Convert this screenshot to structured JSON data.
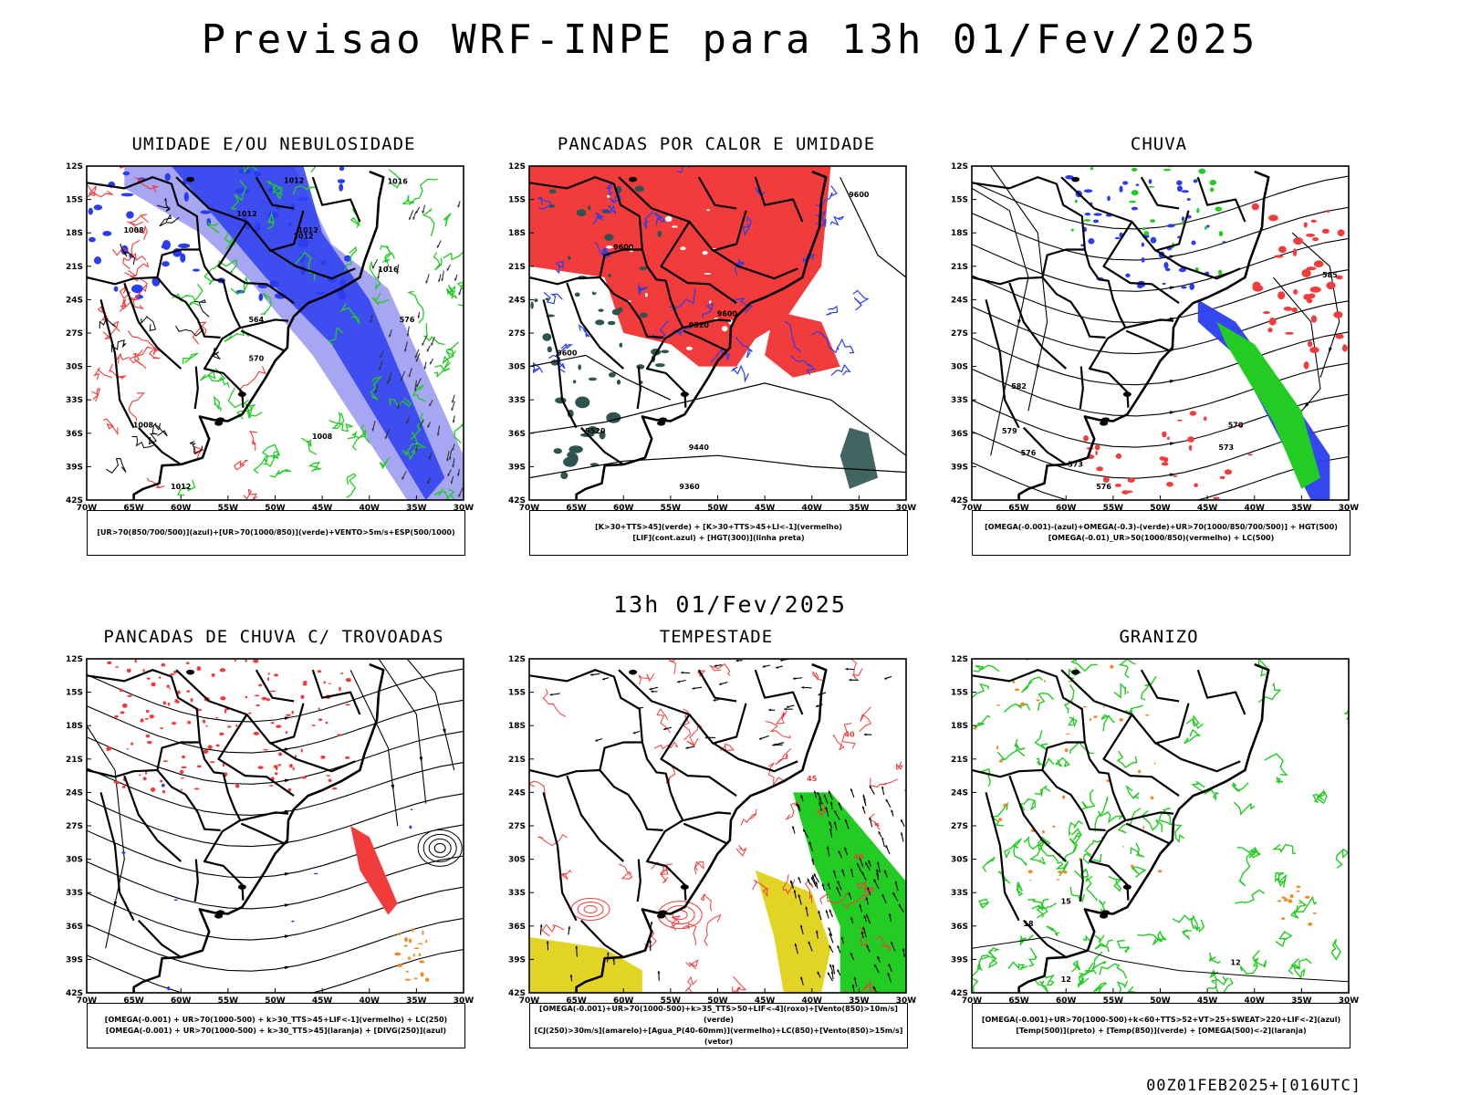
{
  "page": {
    "title": "Previsao WRF-INPE  para 13h 01/Fev/2025",
    "subtitle": "13h 01/Fev/2025",
    "stamp": "00Z01FEB2025+[016UTC]"
  },
  "axes": {
    "lat_labels": [
      "12S",
      "15S",
      "18S",
      "21S",
      "24S",
      "27S",
      "30S",
      "33S",
      "36S",
      "39S",
      "42S"
    ],
    "lon_labels": [
      "70W",
      "65W",
      "60W",
      "55W",
      "50W",
      "45W",
      "40W",
      "35W",
      "30W"
    ]
  },
  "colors": {
    "red": "#f23b3b",
    "green": "#22cc22",
    "blue": "#2a3df0",
    "light_blue": "#8888ee",
    "dark_teal": "#2e5450",
    "yellow": "#e2d424",
    "orange": "#f08a28",
    "black": "#000000"
  },
  "panels": [
    {
      "id": "umidade",
      "title": "UMIDADE E/OU NEBULOSIDADE",
      "legend": [
        "[UR>70(850/700/500)](azul)+[UR>70(1000/850)](verde)+VENTO>5m/s+ESP(500/1000)"
      ],
      "contour_labels": [
        "1012",
        "1012",
        "1012",
        "1008",
        "1008",
        "1012",
        "1016",
        "576",
        "570",
        "564",
        "1008",
        "1012",
        "1016"
      ]
    },
    {
      "id": "pancadas-calor",
      "title": "PANCADAS POR CALOR E UMIDADE",
      "legend": [
        "[K>30+TTS>45](verde) + [K>30+TTS>45+LI<-1](vermelho)",
        "[LIF](cont.azul) + [HGT(300)](linha preta)"
      ],
      "contour_labels": [
        "9600",
        "9600",
        "9520",
        "9600",
        "9520",
        "9440",
        "9360",
        "9600"
      ]
    },
    {
      "id": "chuva",
      "title": "CHUVA",
      "legend": [
        "[OMEGA(-0.001)-(azul)+OMEGA(-0.3)-(verde)+UR>70(1000/850/700/500)] + HGT(500)",
        "[OMEGA(-0.01)_UR>50(1000/850)(vermelho) + LC(500)"
      ],
      "contour_labels": [
        "582",
        "579",
        "576",
        "573",
        "570",
        "576",
        "573",
        "585"
      ]
    },
    {
      "id": "pancadas-trovoadas",
      "title": "PANCADAS DE CHUVA C/ TROVOADAS",
      "legend": [
        "[OMEGA(-0.001) + UR>70(1000-500) + k>30_TTS>45+LIF<-1](vermelho) + LC(250)",
        "[OMEGA(-0.001) + UR>70(1000-500) + k>30_TTS>45](laranja) + [DIVG(250)](azul)"
      ],
      "contour_labels": []
    },
    {
      "id": "tempestade",
      "title": "TEMPESTADE",
      "legend": [
        "[OMEGA(-0.001)+UR>70(1000-500)+k>35_TTS>50+LIF<-4](roxo)+[Vento(850)>10m/s](verde)",
        "[CJ(250)>30m/s](amarelo)+[Agua_P(40-60mm)](vermelho)+LC(850)+[Vento(850)>15m/s](vetor)"
      ],
      "contour_labels": [
        "40",
        "45",
        "50",
        "45"
      ]
    },
    {
      "id": "granizo",
      "title": "GRANIZO",
      "legend": [
        "[OMEGA(-0.001)+UR>70(1000-500)+k<60+TTS>52+VT>25+SWEAT>220+LIF<-2](azul)",
        "[Temp(500)](preto) + [Temp(850)](verde) + [OMEGA(500)<-2](laranja)"
      ],
      "contour_labels": [
        "15",
        "12",
        "18",
        "12"
      ]
    }
  ]
}
